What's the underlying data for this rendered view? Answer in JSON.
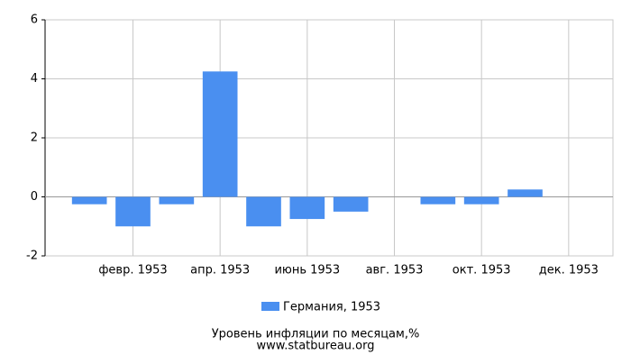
{
  "chart_data": {
    "type": "bar",
    "title": "Уровень инфляции по месяцам,%",
    "subtitle": "www.statbureau.org",
    "categories": [
      null,
      "февр. 1953",
      null,
      "апр. 1953",
      null,
      "июнь 1953",
      null,
      "авг. 1953",
      null,
      "окт. 1953",
      null,
      "дек. 1953"
    ],
    "series": [
      {
        "name": "Германия, 1953",
        "color": "#4a8ff0",
        "values": [
          -0.25,
          -1.0,
          -0.25,
          4.25,
          -1.0,
          -0.75,
          -0.5,
          0,
          -0.25,
          -0.25,
          0.25,
          0
        ]
      }
    ],
    "ylim": [
      -2,
      6
    ],
    "yticks": [
      -2,
      0,
      2,
      4,
      6
    ],
    "grid": true
  }
}
